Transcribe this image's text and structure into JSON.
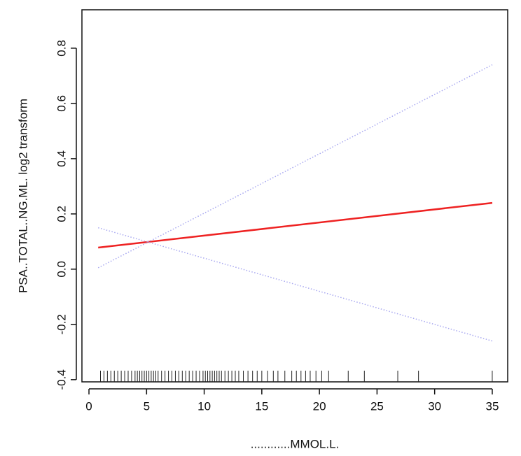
{
  "chart_data": {
    "type": "line",
    "x_label": "............MMOL.L.",
    "y_label": "PSA..TOTAL..NG.ML. log2 transform",
    "x": [
      0.8,
      35
    ],
    "series": [
      {
        "color": "#ee2222",
        "style": "solid",
        "values": [
          0.078,
          0.24
        ]
      },
      {
        "color": "#a8a8f0",
        "style": "dotted",
        "values": [
          0.005,
          0.74
        ]
      },
      {
        "color": "#a8a8f0",
        "style": "dotted",
        "values": [
          0.15,
          -0.26
        ]
      }
    ],
    "rug": [
      1,
      1.3,
      1.6,
      1.9,
      2.2,
      2.5,
      2.8,
      3.1,
      3.4,
      3.7,
      4,
      4.2,
      4.4,
      4.6,
      4.8,
      5,
      5.2,
      5.4,
      5.6,
      5.8,
      6,
      6.3,
      6.6,
      6.9,
      7.2,
      7.5,
      7.8,
      8.1,
      8.4,
      8.7,
      9,
      9.3,
      9.6,
      9.9,
      10.1,
      10.3,
      10.5,
      10.7,
      10.9,
      11.1,
      11.3,
      11.5,
      11.8,
      12.1,
      12.4,
      12.7,
      13,
      13.4,
      13.8,
      14.2,
      14.6,
      15,
      15.5,
      16,
      16.4,
      17,
      17.6,
      18,
      18.4,
      18.8,
      19.2,
      19.7,
      20.2,
      20.8,
      22.5,
      23.9,
      26.8,
      28.6,
      35
    ],
    "xlim": [
      -0.61,
      36.34
    ],
    "ylim": [
      -0.408,
      0.939
    ],
    "xticks": [
      0,
      5,
      10,
      15,
      20,
      25,
      30,
      35
    ],
    "yticks": [
      -0.4,
      -0.2,
      {
        "value": 0,
        "label": "0.0"
      },
      0.2,
      0.4,
      0.6,
      0.8
    ]
  }
}
